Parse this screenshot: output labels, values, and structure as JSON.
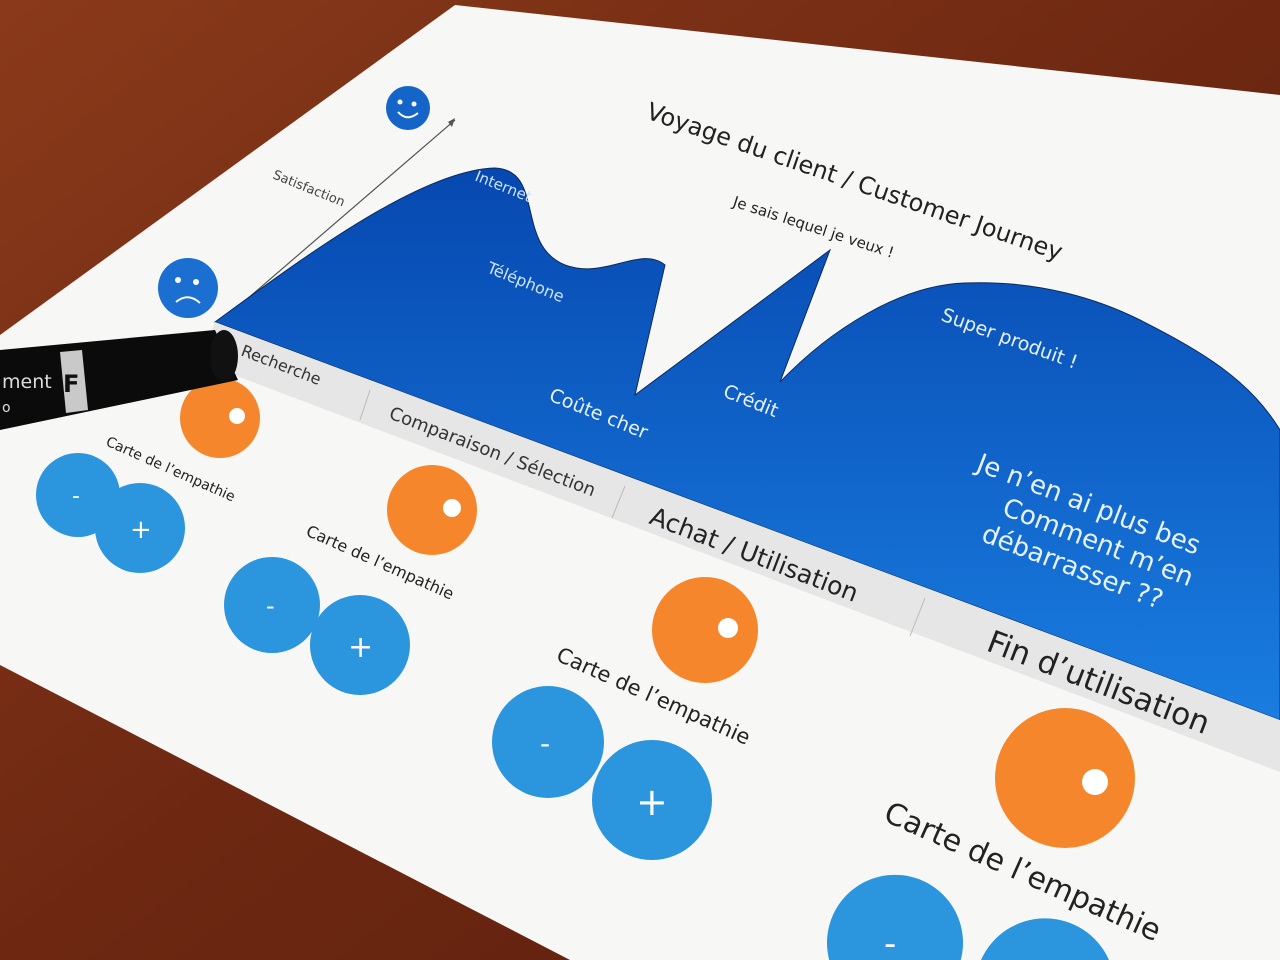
{
  "title": "Voyage du client / Customer Journey",
  "axis_label": "Satisfaction",
  "curve_labels": {
    "internet": "Internet",
    "telephone": "Téléphone",
    "coute_cher": "Coûte cher",
    "je_sais": "Je sais lequel je veux !",
    "credit": "Crédit",
    "super_produit": "Super produit !",
    "end_line1": "Je n’en ai plus bes",
    "end_line2": "Comment m’en",
    "end_line3": "débarrasser ??"
  },
  "stages": [
    "Recherche",
    "Comparaison / Sélection",
    "Achat / Utilisation",
    "Fin d’utilisation"
  ],
  "empathy_label": "Carte de l’empathie",
  "minus": "-",
  "plus": "+",
  "marker": {
    "letter": "F",
    "text": "ment",
    "text2": "o"
  },
  "colors": {
    "blue_area": "#0a5bc4",
    "sticker_blue": "#2b95dd",
    "sticker_orange": "#f5862b",
    "wood": "#7a2f16",
    "paper": "#f7f7f5"
  }
}
